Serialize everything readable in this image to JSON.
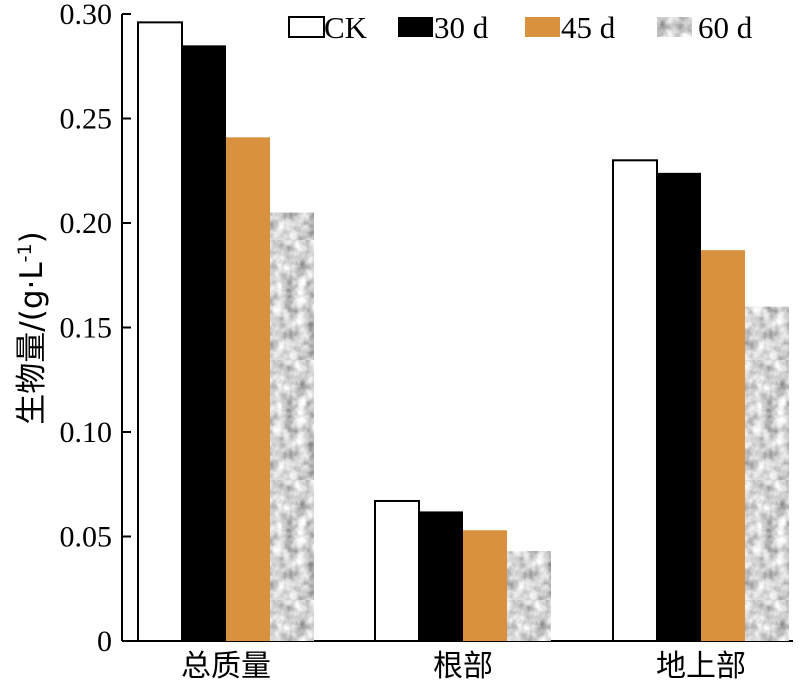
{
  "chart_data": {
    "type": "bar",
    "title": "",
    "xlabel": "",
    "ylabel": "生物量/(g·L-1)",
    "ylabel_main": "生物量/(g·L",
    "ylabel_sup": "-1",
    "ylabel_close": ")",
    "ylim": [
      0,
      0.3
    ],
    "yticks": [
      0,
      0.05,
      0.1,
      0.15,
      0.2,
      0.25,
      0.3
    ],
    "ytick_labels": [
      "0",
      "0.05",
      "0.10",
      "0.15",
      "0.20",
      "0.25",
      "0.30"
    ],
    "categories": [
      "总质量",
      "根部",
      "地上部"
    ],
    "series": [
      {
        "name": "CK",
        "color": "#ffffff",
        "pattern": "none",
        "values": [
          0.296,
          0.067,
          0.23
        ]
      },
      {
        "name": "30 d",
        "color": "#000000",
        "pattern": "none",
        "values": [
          0.285,
          0.062,
          0.224
        ]
      },
      {
        "name": "45 d",
        "color": "#d8913f",
        "pattern": "none",
        "values": [
          0.241,
          0.053,
          0.187
        ]
      },
      {
        "name": "60 d",
        "color": "#9a9a9a",
        "pattern": "mottled-gray",
        "values": [
          0.205,
          0.043,
          0.16
        ]
      }
    ],
    "legend": "top-right",
    "grid": false
  }
}
